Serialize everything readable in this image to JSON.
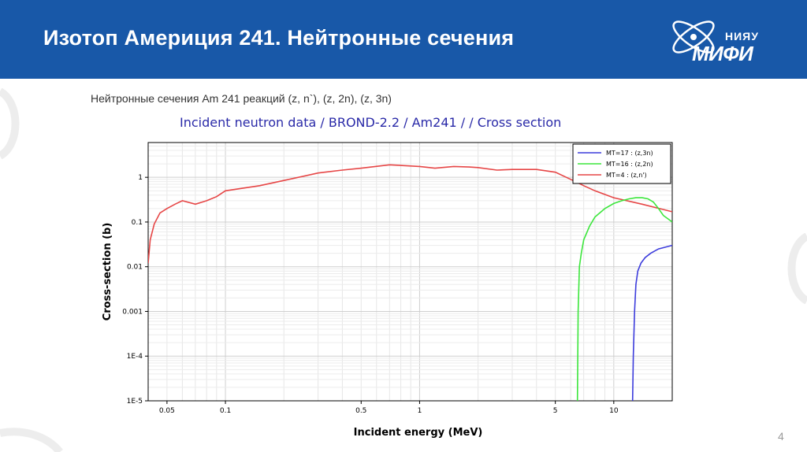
{
  "header": {
    "title": "Изотоп Америция 241. Нейтронные сечения",
    "logo_top": "НИЯУ",
    "logo_main": "МИФИ"
  },
  "subtitle": "Нейтронные сечения Am 241 реакций (z, n`),  (z, 2n),  (z, 3n)",
  "page_number": "4",
  "colors": {
    "header_bg": "#1858a8",
    "mt17": "#3c3cdc",
    "mt16": "#3ce63c",
    "mt4": "#e64646"
  },
  "chart_data": {
    "type": "line",
    "title": "Incident neutron data / BROND-2.2 / Am241 / / Cross section",
    "xlabel": "Incident energy (MeV)",
    "ylabel": "Cross-section (b)",
    "xscale": "log",
    "yscale": "log",
    "xlim": [
      0.04,
      20
    ],
    "ylim": [
      1e-05,
      6
    ],
    "x_ticks": [
      0.05,
      0.1,
      0.5,
      1,
      5,
      10
    ],
    "x_tick_labels": [
      "0.05",
      "0.1",
      "0.5",
      "1",
      "5",
      "10"
    ],
    "y_ticks": [
      1,
      0.1,
      0.01,
      0.001,
      0.0001,
      1e-05
    ],
    "y_tick_labels": [
      "1",
      "0.1",
      "0.01",
      "0.001",
      "1E-4",
      "1E-5"
    ],
    "grid": true,
    "legend_position": "top-right",
    "series": [
      {
        "name": "MT=17 : (z,3n)",
        "color": "#3c3cdc",
        "x": [
          12.5,
          12.6,
          12.8,
          13.0,
          13.3,
          13.8,
          14.5,
          15.5,
          17,
          20
        ],
        "y": [
          1e-05,
          0.0001,
          0.001,
          0.004,
          0.008,
          0.012,
          0.016,
          0.02,
          0.025,
          0.03
        ]
      },
      {
        "name": "MT=16 : (z,2n)",
        "color": "#3ce63c",
        "x": [
          6.5,
          6.55,
          6.65,
          6.8,
          7.0,
          7.5,
          8.0,
          9.0,
          10,
          11,
          12,
          13,
          14,
          15,
          16,
          17,
          18,
          20
        ],
        "y": [
          1e-05,
          0.001,
          0.01,
          0.02,
          0.04,
          0.08,
          0.13,
          0.2,
          0.26,
          0.3,
          0.33,
          0.35,
          0.35,
          0.33,
          0.28,
          0.2,
          0.14,
          0.1
        ]
      },
      {
        "name": "MT=4 : (z,n')",
        "color": "#e64646",
        "x": [
          0.04,
          0.041,
          0.043,
          0.046,
          0.05,
          0.055,
          0.06,
          0.07,
          0.08,
          0.09,
          0.1,
          0.15,
          0.2,
          0.3,
          0.4,
          0.5,
          0.7,
          1.0,
          1.2,
          1.5,
          1.8,
          2.0,
          2.5,
          3.0,
          4.0,
          5.0,
          6.0,
          7.0,
          8.0,
          10.0,
          14.0,
          20.0
        ],
        "y": [
          0.012,
          0.04,
          0.09,
          0.16,
          0.2,
          0.25,
          0.3,
          0.25,
          0.3,
          0.37,
          0.5,
          0.65,
          0.85,
          1.25,
          1.45,
          1.6,
          1.9,
          1.75,
          1.6,
          1.75,
          1.7,
          1.65,
          1.45,
          1.5,
          1.5,
          1.3,
          0.9,
          0.65,
          0.5,
          0.35,
          0.25,
          0.17
        ]
      }
    ]
  }
}
